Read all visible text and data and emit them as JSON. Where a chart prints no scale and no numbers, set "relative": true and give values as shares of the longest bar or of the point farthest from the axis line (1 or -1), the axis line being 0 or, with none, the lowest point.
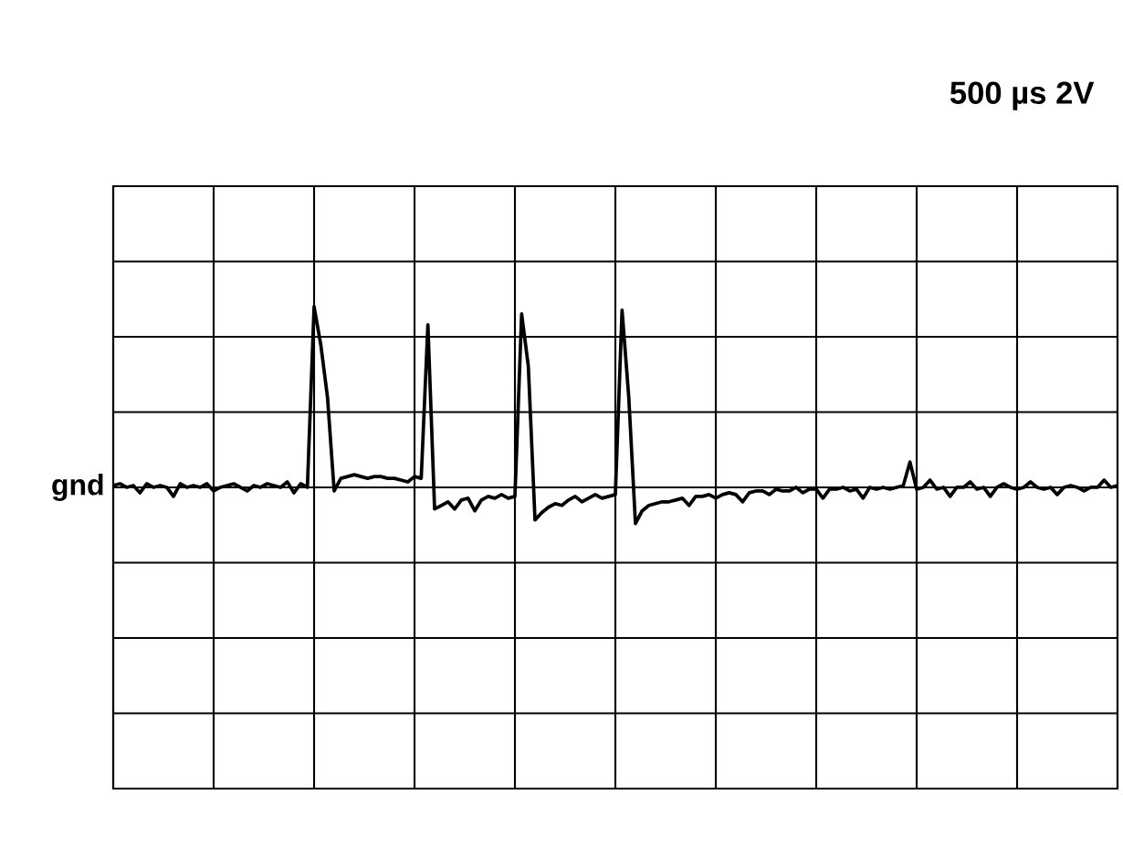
{
  "chart_data": {
    "type": "line",
    "title": "500 µs 2V",
    "relative": true,
    "grid": true,
    "color": "#000000",
    "categories": [
      null,
      null,
      null,
      null,
      null,
      null,
      null,
      null,
      null,
      null,
      null,
      null,
      null,
      null,
      null,
      null,
      null,
      null,
      null,
      null,
      null,
      null,
      null,
      null,
      null,
      null,
      null,
      null,
      null,
      null,
      null,
      null,
      null,
      null,
      null,
      null,
      null,
      null,
      null,
      null,
      null,
      null,
      null,
      null,
      null,
      null,
      null,
      null,
      null,
      null,
      null,
      null,
      null,
      null,
      null,
      null,
      null,
      null,
      null,
      null,
      null,
      null,
      null,
      null,
      null,
      null,
      null,
      null,
      null,
      null,
      null,
      null,
      null,
      null,
      null,
      null,
      null,
      null,
      null,
      null,
      null,
      null,
      null,
      null,
      null,
      null,
      null,
      null,
      null,
      null,
      null,
      null,
      null,
      null,
      null,
      null,
      null,
      null,
      null,
      null,
      null,
      null,
      null,
      null,
      null,
      null,
      null,
      null,
      null,
      null,
      null,
      null,
      null,
      null,
      null,
      null,
      null,
      null,
      null,
      null,
      null,
      null,
      null,
      null,
      null,
      null,
      null,
      null,
      null,
      null,
      null,
      null,
      null,
      null,
      null,
      null,
      null,
      null,
      null,
      null,
      null,
      null,
      null,
      null,
      null,
      null,
      null,
      null,
      null,
      null,
      null
    ],
    "values": [
      0.01,
      0.02,
      0,
      0.01,
      -0.03,
      0.02,
      0,
      0.01,
      0,
      -0.05,
      0.02,
      0,
      0.01,
      0,
      0.02,
      -0.02,
      0,
      0.01,
      0.02,
      0,
      -0.02,
      0.01,
      0,
      0.02,
      0.01,
      0,
      0.03,
      -0.03,
      0.02,
      0,
      1.0,
      0.79,
      0.5,
      -0.02,
      0.05,
      0.06,
      0.07,
      0.06,
      0.05,
      0.06,
      0.06,
      0.05,
      0.05,
      0.04,
      0.03,
      0.06,
      0.05,
      0.9,
      -0.12,
      -0.1,
      -0.08,
      -0.12,
      -0.07,
      -0.06,
      -0.13,
      -0.07,
      -0.05,
      -0.06,
      -0.04,
      -0.06,
      -0.05,
      0.96,
      0.67,
      -0.18,
      -0.14,
      -0.11,
      -0.09,
      -0.1,
      -0.07,
      -0.05,
      -0.08,
      -0.06,
      -0.04,
      -0.06,
      -0.05,
      -0.04,
      0.98,
      0.5,
      -0.2,
      -0.13,
      -0.1,
      -0.09,
      -0.08,
      -0.08,
      -0.07,
      -0.06,
      -0.1,
      -0.05,
      -0.05,
      -0.04,
      -0.06,
      -0.04,
      -0.03,
      -0.04,
      -0.08,
      -0.03,
      -0.02,
      -0.02,
      -0.04,
      -0.01,
      -0.02,
      -0.02,
      0.0,
      -0.03,
      -0.01,
      -0.01,
      -0.06,
      -0.01,
      -0.01,
      0.0,
      -0.02,
      -0.01,
      -0.06,
      0.0,
      -0.01,
      0.0,
      -0.01,
      0.0,
      0.01,
      0.14,
      -0.01,
      0.0,
      0.04,
      -0.01,
      0.0,
      -0.05,
      0.0,
      0.0,
      0.03,
      -0.01,
      0.0,
      -0.05,
      0.0,
      0.02,
      0.0,
      -0.01,
      0.0,
      0.03,
      0.0,
      -0.01,
      0.0,
      -0.04,
      0.0,
      0.01,
      0.0,
      -0.02,
      0.0,
      0.0,
      0.04,
      0.0,
      0.01
    ],
    "ref_lines": [
      {
        "axis": "y",
        "value": 0,
        "label": "gnd"
      }
    ]
  }
}
